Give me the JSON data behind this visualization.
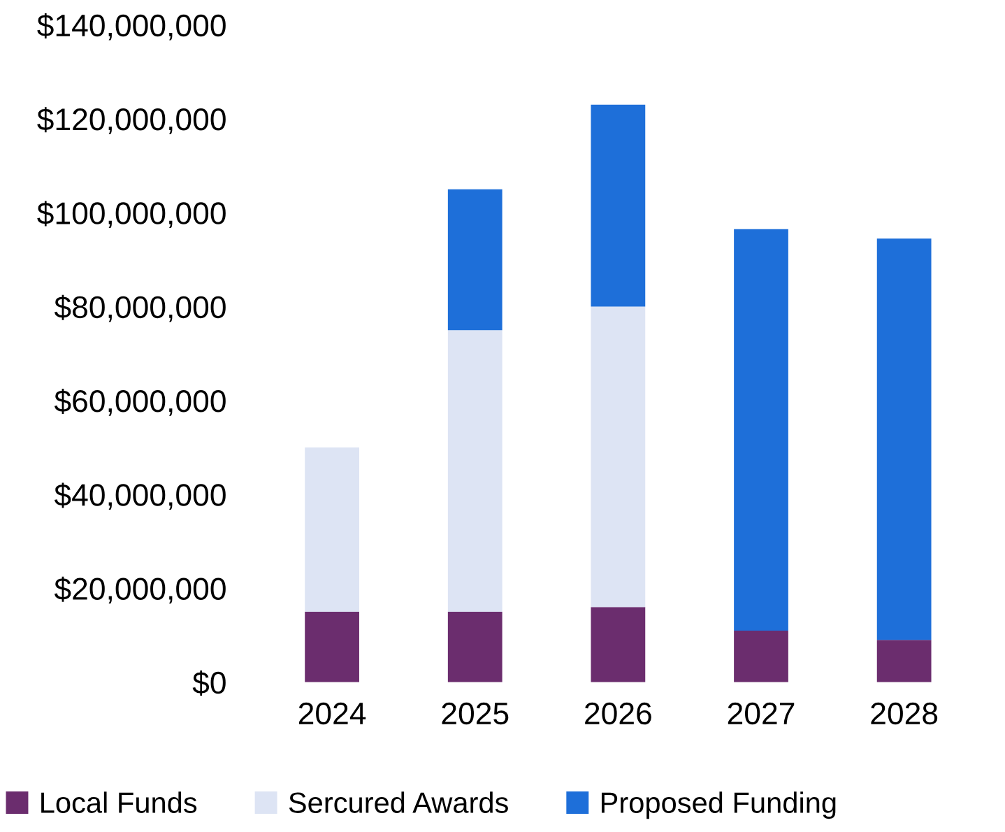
{
  "chart_data": {
    "type": "bar",
    "stacked": true,
    "categories": [
      "2024",
      "2025",
      "2026",
      "2027",
      "2028"
    ],
    "series": [
      {
        "name": "Local Funds",
        "color": "#6b2d6e",
        "values": [
          15000000,
          15000000,
          16000000,
          11000000,
          9000000
        ]
      },
      {
        "name": "Sercured Awards",
        "color": "#dde4f4",
        "values": [
          35000000,
          60000000,
          64000000,
          0,
          0
        ]
      },
      {
        "name": "Proposed Funding",
        "color": "#1e6fd9",
        "values": [
          0,
          30000000,
          43000000,
          85500000,
          85500000
        ]
      }
    ],
    "ylim": [
      0,
      140000000
    ],
    "yticks": [
      {
        "value": 0,
        "label": "$0"
      },
      {
        "value": 20000000,
        "label": "$20,000,000"
      },
      {
        "value": 40000000,
        "label": "$40,000,000"
      },
      {
        "value": 60000000,
        "label": "$60,000,000"
      },
      {
        "value": 80000000,
        "label": "$80,000,000"
      },
      {
        "value": 100000000,
        "label": "$100,000,000"
      },
      {
        "value": 120000000,
        "label": "$120,000,000"
      },
      {
        "value": 140000000,
        "label": "$140,000,000"
      }
    ],
    "grid": false,
    "legend": "bottom"
  }
}
